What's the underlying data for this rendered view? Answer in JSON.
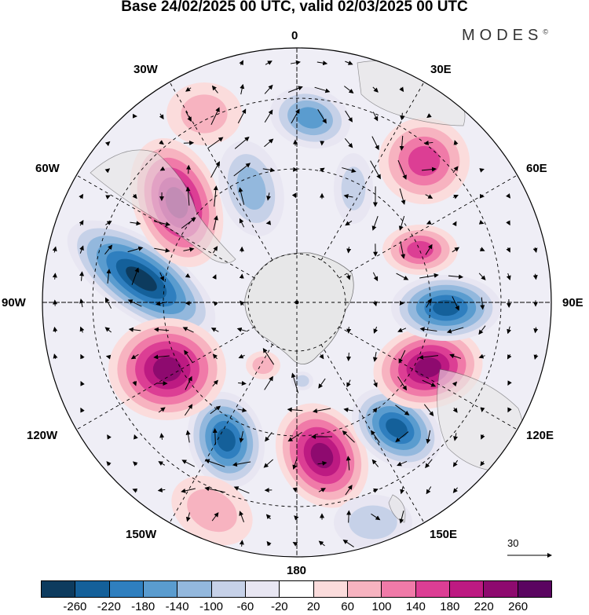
{
  "title": "Base 24/02/2025 00 UTC, valid 02/03/2025 00 UTC",
  "brand": "MODES",
  "brand_mark": "©",
  "longitude_labels": {
    "n0": "0",
    "e30": "30E",
    "e60": "60E",
    "e90": "90E",
    "e120": "120E",
    "e150": "150E",
    "s180": "180",
    "w150": "150W",
    "w120": "120W",
    "w90": "90W",
    "w60": "60W",
    "w30": "30W"
  },
  "reference_vector": {
    "label": "30"
  },
  "colorbar": {
    "colors": [
      "#0d3b5e",
      "#14609a",
      "#2f7fbf",
      "#5a9ccf",
      "#93b8dd",
      "#c6d1e8",
      "#e8e6f2",
      "#ffffff",
      "#fbdcdc",
      "#f7b3c0",
      "#f07aa8",
      "#dc3e94",
      "#bd1a82",
      "#8e0a6f",
      "#5a0560"
    ],
    "labels": [
      "-260",
      "-220",
      "-180",
      "-140",
      "-100",
      "-60",
      "-20",
      "20",
      "60",
      "100",
      "140",
      "180",
      "220",
      "260"
    ]
  },
  "map_colors": {
    "land": "#e6e6e6",
    "grid": "#000000"
  }
}
